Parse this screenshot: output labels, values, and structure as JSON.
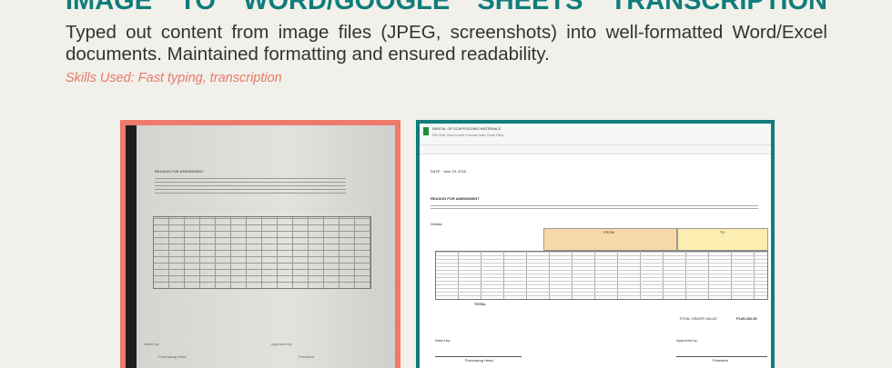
{
  "header": {
    "title": "IMAGE TO WORD/GOOGLE SHEETS TRANSCRIPTION",
    "description": "Typed out content from image files (JPEG, screenshots) into well-formatted Word/Excel documents. Maintained formatting and ensured readability.",
    "skills_label": "Skills Used",
    "skills": ": Fast typing, transcription"
  },
  "colors": {
    "accent": "#0f7d7b",
    "coral": "#f07a6a",
    "background": "#f1f0ea"
  },
  "original_photo": {
    "heading": "REASON FOR AMENDMENT",
    "noted_by": "Noted by:",
    "approved_by": "Approved by:",
    "signatory_left": "Purchasing Head",
    "signatory_right": "President"
  },
  "spreadsheet": {
    "doc_title": "RENTAL OF SCAFFOLDING MATERIALS",
    "menu": "File  Edit  View  Insert  Format  Data  Tools  Help",
    "date": "DATE  :  June 23, 2025",
    "heading": "REASON FOR AMENDMENT",
    "details": "Details:",
    "from_label": "FROM",
    "to_label": "TO",
    "total_label": "TOTAL",
    "order_total_label": "TOTAL ORDER VALUE",
    "order_total": "P145,252.50",
    "noted_by": "Noted by:",
    "approved_by": "Approved by:",
    "signatory_left": "Purchasing Head",
    "signatory_right": "President"
  }
}
